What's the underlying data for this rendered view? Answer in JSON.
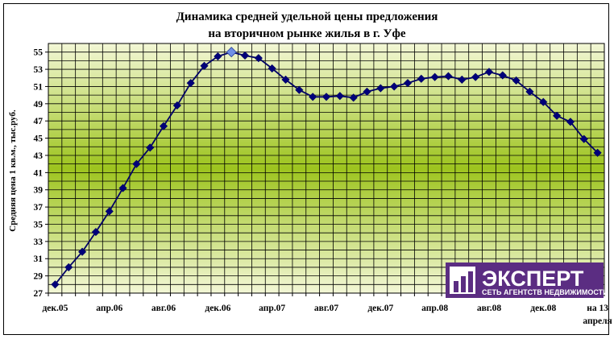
{
  "chart_data": {
    "type": "line",
    "title_line1": "Динамика средней удельной цены предложения",
    "title_line2": "на вторичном рынке жилья в г. Уфе",
    "ylabel": "Средняя цена 1 кв.м., тыс.руб.",
    "xlabel": "",
    "ylim": [
      27,
      56
    ],
    "yticks": [
      27,
      29,
      31,
      33,
      35,
      37,
      39,
      41,
      43,
      45,
      47,
      49,
      51,
      53,
      55
    ],
    "xtick_labels": [
      {
        "index": 0,
        "label": "дек.05"
      },
      {
        "index": 4,
        "label": "апр.06"
      },
      {
        "index": 8,
        "label": "авг.06"
      },
      {
        "index": 12,
        "label": "дек.06"
      },
      {
        "index": 16,
        "label": "апр.07"
      },
      {
        "index": 20,
        "label": "авг.07"
      },
      {
        "index": 24,
        "label": "дек.07"
      },
      {
        "index": 28,
        "label": "апр.08"
      },
      {
        "index": 32,
        "label": "авг.08"
      },
      {
        "index": 36,
        "label": "дек.08"
      },
      {
        "index": 40,
        "label": "на 13",
        "label2": "апреля"
      }
    ],
    "values": [
      28.0,
      30.0,
      31.8,
      34.1,
      36.5,
      39.2,
      42.0,
      43.9,
      46.4,
      48.8,
      51.4,
      53.4,
      54.5,
      55.0,
      54.6,
      54.3,
      53.1,
      51.8,
      50.6,
      49.8,
      49.8,
      49.9,
      49.7,
      50.4,
      50.8,
      51.0,
      51.4,
      51.9,
      52.1,
      52.2,
      51.8,
      52.1,
      52.7,
      52.3,
      51.7,
      50.4,
      49.2,
      47.6,
      46.9,
      44.9,
      43.3
    ],
    "highlight_index": 13,
    "colors": {
      "line": "#000066",
      "marker": "#00007a",
      "highlight_marker": "#6f8fe6",
      "grid": "#000000",
      "plot_edge": "#f3f7d6",
      "plot_center": "#9dc41e",
      "logo_bg": "#5b2d82"
    },
    "grid": true,
    "legend": "none"
  },
  "logo": {
    "brand": "ЭКСПЕРТ",
    "tagline": "СЕТЬ АГЕНТСТВ НЕДВИЖИМОСТИ"
  }
}
